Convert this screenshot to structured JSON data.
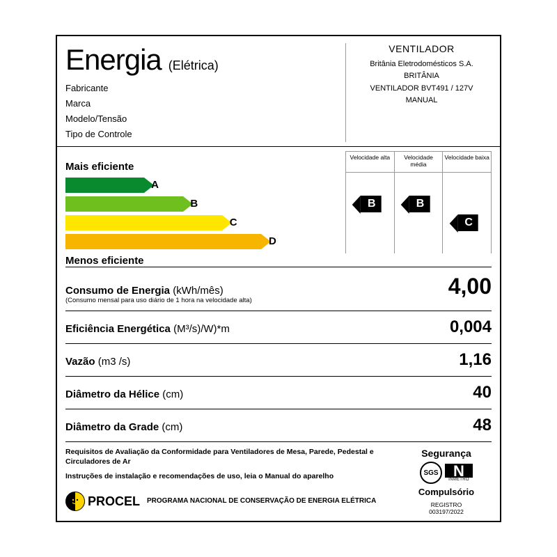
{
  "header": {
    "title": "Energia",
    "subtitle": "(Elétrica)",
    "meta_labels": {
      "fabricante": "Fabricante",
      "marca": "Marca",
      "modelo": "Modelo/Tensão",
      "tipo": "Tipo de Controle"
    },
    "product_type": "VENTILADOR",
    "fabricante": "Britânia Eletrodomésticos S.A.",
    "marca": "BRITÂNIA",
    "modelo": "VENTILADOR BVT491 / 127V",
    "tipo": "MANUAL"
  },
  "efficiency": {
    "more_label": "Mais eficiente",
    "less_label": "Menos eficiente",
    "speed_headers": [
      "Velocidade alta",
      "Velocidade média",
      "Velocidade baixa"
    ],
    "bars": [
      {
        "letter": "A",
        "width_pct": 28,
        "color": "#0a8a2f"
      },
      {
        "letter": "B",
        "width_pct": 42,
        "color": "#6fbf1f"
      },
      {
        "letter": "C",
        "width_pct": 56,
        "color": "#ffe600"
      },
      {
        "letter": "D",
        "width_pct": 70,
        "color": "#f7b500"
      }
    ],
    "ratings": {
      "alta": "B",
      "media": "B",
      "baixa": "C"
    },
    "rating_row": {
      "alta": 1,
      "media": 1,
      "baixa": 2
    }
  },
  "specs": [
    {
      "label": "Consumo de Energia",
      "unit": "(kWh/mês)",
      "note": "(Consumo mensal para uso diário de 1 hora na velocidade alta)",
      "value": "4,00"
    },
    {
      "label": "Eficiência Energética",
      "unit": "(M³/s)/W)*m",
      "value": "0,004"
    },
    {
      "label": "Vazão",
      "unit": "(m3 /s)",
      "value": "1,16"
    },
    {
      "label": "Diâmetro da Hélice",
      "unit": "(cm)",
      "value": "40"
    },
    {
      "label": "Diâmetro da Grade",
      "unit": "(cm)",
      "value": "48"
    }
  ],
  "footer": {
    "req": "Requisitos de Avaliação da Conformidade para Ventiladores de Mesa, Parede, Pedestal e Circuladores de Ar",
    "instr": "Instruções de instalação e recomendações de uso, leia o Manual do aparelho",
    "procel_name": "PROCEL",
    "procel_text": "PROGRAMA NACIONAL DE CONSERVAÇÃO DE ENERGIA ELÉTRICA",
    "seguranca": "Segurança",
    "sgs": "SGS",
    "inmetro_n": "N",
    "inmetro_label": "INMETRO",
    "compulsorio": "Compulsório",
    "registro_label": "REGISTRO",
    "registro": "003197/2022"
  },
  "colors": {
    "arrow_tip_scale": 14
  }
}
